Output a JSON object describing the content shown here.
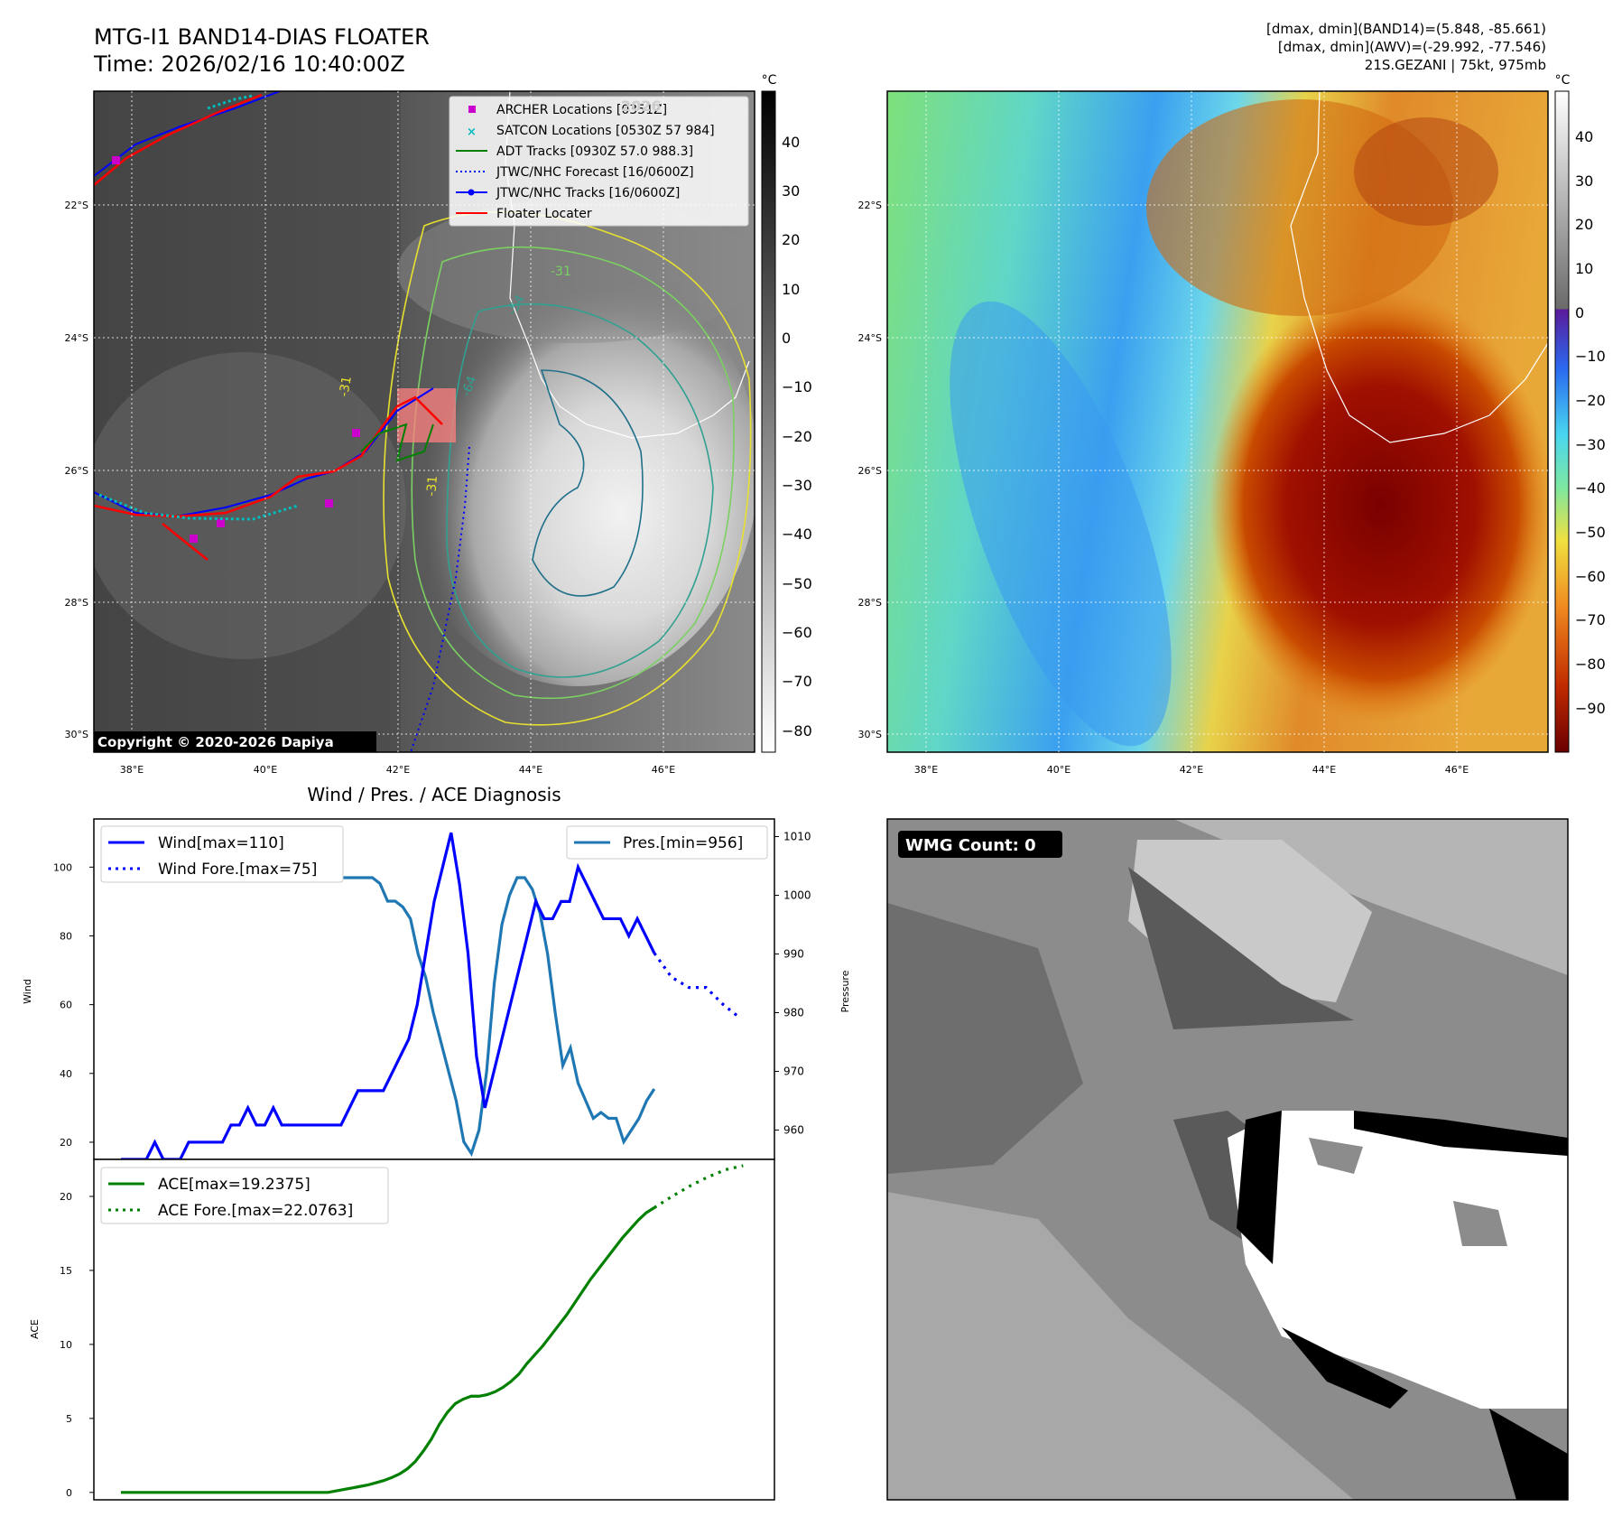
{
  "header": {
    "title": "MTG-I1 BAND14-DIAS FLOATER",
    "time": "Time: 2026/02/16 10:40:00Z",
    "dmax_band14": "[dmax, dmin](BAND14)=(5.848, -85.661)",
    "dmax_awv": "[dmax, dmin](AWV)=(-29.992, -77.546)",
    "storm": "21S.GEZANI | 75kt, 975mb"
  },
  "map_axes": {
    "lat_labels": [
      "22°S",
      "24°S",
      "26°S",
      "28°S",
      "30°S"
    ],
    "lon_labels": [
      "38°E",
      "40°E",
      "42°E",
      "44°E",
      "46°E"
    ]
  },
  "ir_panel": {
    "colorbar_unit": "°C",
    "colorbar_ticks": [
      "40",
      "30",
      "20",
      "10",
      "0",
      "−10",
      "−20",
      "−30",
      "−40",
      "−50",
      "−60",
      "−70",
      "−80"
    ],
    "copyright": "Copyright © 2020-2026 Dapiya",
    "watermark": "2026",
    "legend": {
      "archer": "ARCHER Locations [0351Z]",
      "satcon": "SATCON Locations [0530Z 57 984]",
      "adt": "ADT Tracks [0930Z 57.0 988.3]",
      "jtwc_forecast": "JTWC/NHC Forecast [16/0600Z]",
      "jtwc_tracks": "JTWC/NHC Tracks [16/0600Z]",
      "floater": "Floater Locater"
    },
    "contour_labels": [
      "-31",
      "-54",
      "-64",
      "-31",
      "-31"
    ]
  },
  "awv_panel": {
    "colorbar_unit": "°C",
    "colorbar_ticks": [
      "40",
      "30",
      "20",
      "10",
      "0",
      "−10",
      "−20",
      "−30",
      "−40",
      "−50",
      "−60",
      "−70",
      "−80",
      "−90"
    ]
  },
  "wmg_panel": {
    "badge": "WMG Count: 0"
  },
  "colors": {
    "wind": "#0000ff",
    "pressure": "#1f77b4",
    "ace": "#008000",
    "floater": "#ff0000",
    "archer": "#cc00cc",
    "satcon": "#00bbbb"
  },
  "chart_data": [
    {
      "type": "line",
      "title": "Wind / Pres. / ACE Diagnosis",
      "ylabel": "Wind",
      "ylim": [
        15,
        114
      ],
      "yticks": [
        20,
        40,
        60,
        80,
        100
      ],
      "series": [
        {
          "name": "Wind[max=110]",
          "style": "solid",
          "axis": "left",
          "values": [
            15,
            15,
            15,
            15,
            20,
            15,
            15,
            15,
            20,
            20,
            20,
            20,
            20,
            25,
            25,
            30,
            25,
            25,
            30,
            25,
            25,
            25,
            25,
            25,
            25,
            25,
            25,
            30,
            35,
            35,
            35,
            35,
            40,
            45,
            50,
            60,
            75,
            90,
            100,
            110,
            95,
            75,
            45,
            30,
            40,
            50,
            60,
            70,
            80,
            90,
            85,
            85,
            90,
            90,
            100,
            95,
            90,
            85,
            85,
            85,
            80,
            85,
            80,
            75
          ]
        },
        {
          "name": "Wind Fore.[max=75]",
          "style": "dotted",
          "axis": "left",
          "x_start": 63,
          "x_end": 73.2,
          "values": [
            75,
            68,
            65,
            65,
            60,
            56
          ]
        },
        {
          "name": "Pres.[min=956]",
          "style": "solid",
          "axis": "right",
          "values": [
            1011,
            1011,
            1011,
            1011,
            1010,
            1009,
            1009,
            1008,
            1007,
            1006,
            1006,
            1006,
            1006,
            1006,
            1007,
            1006,
            1005,
            1004,
            1004,
            1004,
            1004,
            1004,
            1004,
            1004,
            1004,
            1004,
            1004,
            1004,
            1004,
            1003,
            1003,
            1003,
            1003,
            1003,
            1002,
            999,
            999,
            998,
            996,
            990,
            986,
            980,
            975,
            970,
            965,
            958,
            956,
            960,
            970,
            985,
            995,
            1000,
            1003,
            1003,
            1001,
            997,
            990,
            980,
            971,
            974,
            968,
            965,
            962,
            963,
            962,
            962,
            958,
            960,
            962,
            965,
            967
          ]
        }
      ],
      "x_count_note": "pressure series resampled over the same time axis",
      "ylim_right": [
        955,
        1013
      ],
      "yticks_right": [
        960,
        970,
        980,
        990,
        1000,
        1010
      ],
      "ylabel_right": "Pressure"
    },
    {
      "type": "line",
      "ylabel": "ACE",
      "ylim": [
        -0.5,
        22.5
      ],
      "yticks": [
        0,
        5,
        10,
        15,
        20
      ],
      "series": [
        {
          "name": "ACE[max=19.2375]",
          "style": "solid",
          "values": [
            0,
            0,
            0,
            0,
            0,
            0,
            0,
            0,
            0,
            0,
            0,
            0,
            0,
            0,
            0,
            0,
            0,
            0,
            0,
            0,
            0,
            0,
            0,
            0,
            0,
            0,
            0,
            0.1,
            0.2,
            0.3,
            0.4,
            0.5,
            0.65,
            0.8,
            1.0,
            1.25,
            1.6,
            2.1,
            2.8,
            3.6,
            4.6,
            5.4,
            6.0,
            6.3,
            6.5,
            6.5,
            6.6,
            6.8,
            7.1,
            7.5,
            8.0,
            8.7,
            9.3,
            9.9,
            10.6,
            11.3,
            12.0,
            12.8,
            13.6,
            14.4,
            15.1,
            15.8,
            16.5,
            17.2,
            17.8,
            18.4,
            18.9,
            19.2375
          ]
        },
        {
          "name": "ACE Fore.[max=22.0763]",
          "style": "dotted",
          "x_start": 67,
          "x_end": 73.5,
          "values": [
            19.2375,
            20.0,
            20.7,
            21.3,
            21.8,
            22.0763
          ]
        }
      ]
    }
  ]
}
